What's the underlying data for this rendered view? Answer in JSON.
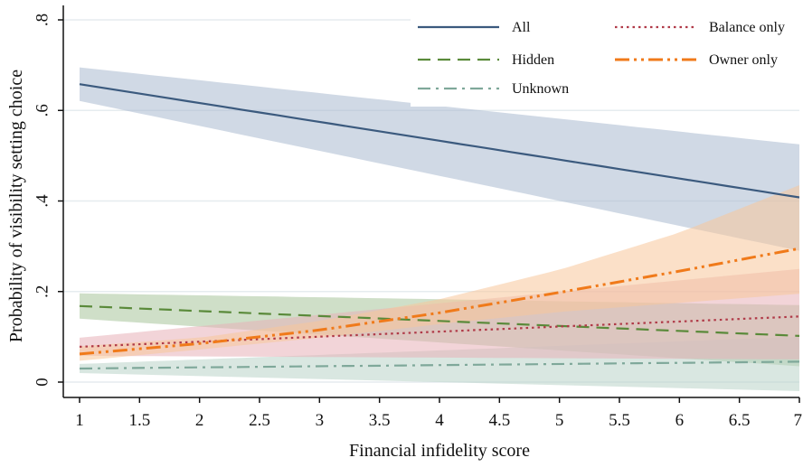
{
  "chart_data": {
    "type": "line",
    "xlabel": "Financial infidelity score",
    "ylabel": "Probability of visibility setting choice",
    "xlim": [
      1,
      7
    ],
    "ylim": [
      0,
      0.8
    ],
    "x_ticks": [
      1,
      1.5,
      2,
      2.5,
      3,
      3.5,
      4,
      4.5,
      5,
      5.5,
      6,
      6.5,
      7
    ],
    "x_tick_labels": [
      "1",
      "1.5",
      "2",
      "2.5",
      "3",
      "3.5",
      "4",
      "4.5",
      "5",
      "5.5",
      "6",
      "6.5",
      "7"
    ],
    "y_ticks": [
      0,
      0.2,
      0.4,
      0.6,
      0.8
    ],
    "y_tick_labels": [
      "0",
      ".2",
      ".4",
      ".6",
      ".8"
    ],
    "grid": "horizontal",
    "legend_position": "top-right",
    "series": [
      {
        "name": "All",
        "color": "#3b5a7e",
        "band_color": "#a9b9cf",
        "style": "solid",
        "x": [
          1,
          7
        ],
        "y": [
          0.658,
          0.408
        ],
        "ci_lower": [
          0.621,
          0.29
        ],
        "ci_upper": [
          0.695,
          0.525
        ]
      },
      {
        "name": "Hidden",
        "color": "#5a8a3a",
        "band_color": "#a7c49a",
        "style": "dash",
        "x": [
          1,
          7
        ],
        "y": [
          0.168,
          0.102
        ],
        "ci_lower": [
          0.14,
          0.035
        ],
        "ci_upper": [
          0.196,
          0.17
        ]
      },
      {
        "name": "Unknown",
        "color": "#7fa89a",
        "band_color": "#b9d4c8",
        "style": "dashdot",
        "x": [
          1,
          7
        ],
        "y": [
          0.03,
          0.045
        ],
        "ci_lower": [
          0.02,
          -0.02
        ],
        "ci_upper": [
          0.04,
          0.1
        ]
      },
      {
        "name": "Balance only",
        "color": "#b03a48",
        "band_color": "#e8b0b8",
        "style": "dot",
        "x": [
          1,
          7
        ],
        "y": [
          0.078,
          0.145
        ],
        "ci_lower": [
          0.058,
          0.05
        ],
        "ci_upper": [
          0.098,
          0.25
        ]
      },
      {
        "name": "Owner only",
        "color": "#f07a1a",
        "band_color": "#f8c79a",
        "style": "longdashdotdot",
        "x": [
          1,
          2,
          3,
          4,
          5,
          6,
          7
        ],
        "y": [
          0.062,
          0.085,
          0.115,
          0.153,
          0.198,
          0.245,
          0.295
        ],
        "ci_lower": [
          0.047,
          0.072,
          0.098,
          0.128,
          0.155,
          0.175,
          0.195
        ],
        "ci_upper": [
          0.079,
          0.098,
          0.135,
          0.183,
          0.248,
          0.33,
          0.435
        ]
      }
    ]
  }
}
